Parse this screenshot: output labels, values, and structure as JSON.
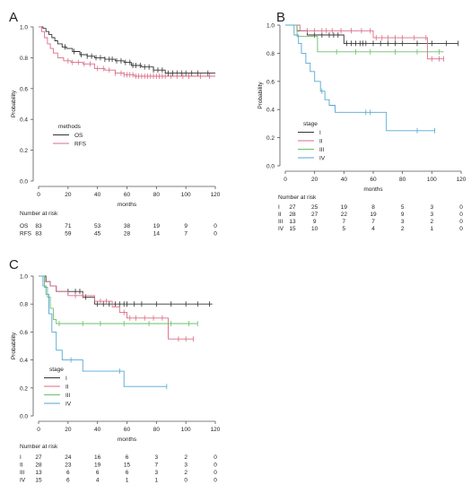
{
  "chart_data": [
    {
      "panel": "A",
      "type": "line",
      "xlabel": "months",
      "ylabel": "Probability",
      "xlim": [
        0,
        120
      ],
      "ylim": [
        0,
        1.0
      ],
      "xticks": [
        0,
        20,
        40,
        60,
        80,
        100,
        120
      ],
      "yticks": [
        0.0,
        0.2,
        0.4,
        0.6,
        0.8,
        1.0
      ],
      "legend": {
        "title": "methods",
        "placement": "center-left"
      },
      "series": [
        {
          "name": "OS",
          "color": "#333333",
          "steps": [
            [
              0,
              1.0
            ],
            [
              3,
              0.99
            ],
            [
              5,
              0.97
            ],
            [
              7,
              0.95
            ],
            [
              9,
              0.93
            ],
            [
              11,
              0.91
            ],
            [
              13,
              0.89
            ],
            [
              16,
              0.87
            ],
            [
              19,
              0.86
            ],
            [
              23,
              0.84
            ],
            [
              28,
              0.82
            ],
            [
              33,
              0.81
            ],
            [
              38,
              0.8
            ],
            [
              45,
              0.79
            ],
            [
              52,
              0.78
            ],
            [
              58,
              0.77
            ],
            [
              63,
              0.75
            ],
            [
              70,
              0.74
            ],
            [
              78,
              0.72
            ],
            [
              86,
              0.7
            ],
            [
              95,
              0.7
            ],
            [
              120,
              0.7
            ]
          ],
          "censor": [
            18,
            24,
            29,
            33,
            36,
            39,
            42,
            45,
            48,
            50,
            53,
            56,
            59,
            62,
            64,
            66,
            69,
            72,
            75,
            78,
            81,
            84,
            88,
            91,
            94,
            97,
            100,
            104,
            108,
            115
          ]
        },
        {
          "name": "RFS",
          "color": "#d96d87",
          "steps": [
            [
              0,
              1.0
            ],
            [
              2,
              0.97
            ],
            [
              4,
              0.93
            ],
            [
              6,
              0.89
            ],
            [
              8,
              0.86
            ],
            [
              10,
              0.83
            ],
            [
              13,
              0.8
            ],
            [
              17,
              0.78
            ],
            [
              22,
              0.77
            ],
            [
              30,
              0.76
            ],
            [
              38,
              0.73
            ],
            [
              45,
              0.72
            ],
            [
              52,
              0.7
            ],
            [
              58,
              0.69
            ],
            [
              65,
              0.68
            ],
            [
              120,
              0.68
            ]
          ],
          "censor": [
            20,
            23,
            27,
            31,
            35,
            40,
            44,
            48,
            52,
            56,
            58,
            60,
            62,
            64,
            66,
            68,
            70,
            72,
            74,
            76,
            78,
            80,
            82,
            84,
            86,
            90,
            94,
            98,
            102,
            110,
            116
          ]
        }
      ],
      "risk_table": {
        "title": "Number at risk",
        "times": [
          0,
          20,
          40,
          60,
          80,
          100,
          120
        ],
        "rows": [
          {
            "label": "OS",
            "values": [
              "83",
              "71",
              "53",
              "38",
              "19",
              "9",
              "0"
            ]
          },
          {
            "label": "RFS",
            "values": [
              "83",
              "59",
              "45",
              "28",
              "14",
              "7",
              "0"
            ]
          }
        ]
      }
    },
    {
      "panel": "B",
      "type": "line",
      "xlabel": "months",
      "ylabel": "Probability",
      "xlim": [
        0,
        120
      ],
      "ylim": [
        0,
        1.0
      ],
      "xticks": [
        0,
        20,
        40,
        60,
        80,
        100,
        120
      ],
      "yticks": [
        0.0,
        0.2,
        0.4,
        0.6,
        0.8,
        1.0
      ],
      "legend": {
        "title": "stage",
        "placement": "center-left"
      },
      "series": [
        {
          "name": "I",
          "color": "#333333",
          "steps": [
            [
              0,
              1.0
            ],
            [
              8,
              0.96
            ],
            [
              15,
              0.93
            ],
            [
              40,
              0.87
            ],
            [
              118,
              0.87
            ]
          ],
          "censor": [
            20,
            25,
            30,
            33,
            36,
            42,
            45,
            48,
            51,
            53,
            55,
            60,
            65,
            70,
            75,
            80,
            90,
            100,
            110,
            118
          ]
        },
        {
          "name": "II",
          "color": "#d96d87",
          "steps": [
            [
              0,
              1.0
            ],
            [
              10,
              0.96
            ],
            [
              60,
              0.91
            ],
            [
              97,
              0.76
            ],
            [
              108,
              0.76
            ]
          ],
          "censor": [
            15,
            20,
            25,
            28,
            32,
            38,
            45,
            52,
            58,
            62,
            66,
            70,
            75,
            80,
            88,
            96,
            100,
            105,
            108
          ]
        },
        {
          "name": "III",
          "color": "#6bbf6b",
          "steps": [
            [
              0,
              1.0
            ],
            [
              8,
              0.92
            ],
            [
              22,
              0.81
            ],
            [
              108,
              0.81
            ]
          ],
          "censor": [
            35,
            48,
            58,
            75,
            90,
            105
          ]
        },
        {
          "name": "IV",
          "color": "#56a6d6",
          "steps": [
            [
              0,
              1.0
            ],
            [
              6,
              0.93
            ],
            [
              9,
              0.87
            ],
            [
              11,
              0.8
            ],
            [
              14,
              0.73
            ],
            [
              17,
              0.67
            ],
            [
              20,
              0.6
            ],
            [
              24,
              0.53
            ],
            [
              27,
              0.47
            ],
            [
              30,
              0.43
            ],
            [
              34,
              0.38
            ],
            [
              69,
              0.25
            ],
            [
              102,
              0.25
            ]
          ],
          "censor": [
            25,
            55,
            58,
            90,
            102
          ]
        }
      ],
      "risk_table": {
        "title": "Number at risk",
        "times": [
          0,
          20,
          40,
          60,
          80,
          100,
          120
        ],
        "rows": [
          {
            "label": "I",
            "values": [
              "27",
              "25",
              "19",
              "8",
              "5",
              "3",
              "0"
            ]
          },
          {
            "label": "II",
            "values": [
              "28",
              "27",
              "22",
              "19",
              "9",
              "3",
              "0"
            ]
          },
          {
            "label": "III",
            "values": [
              "13",
              "9",
              "7",
              "7",
              "3",
              "2",
              "0"
            ]
          },
          {
            "label": "IV",
            "values": [
              "15",
              "10",
              "5",
              "4",
              "2",
              "1",
              "0"
            ]
          }
        ]
      }
    },
    {
      "panel": "C",
      "type": "line",
      "xlabel": "months",
      "ylabel": "Probability",
      "xlim": [
        0,
        120
      ],
      "ylim": [
        0,
        1.0
      ],
      "xticks": [
        0,
        20,
        40,
        60,
        80,
        100,
        120
      ],
      "yticks": [
        0.0,
        0.2,
        0.4,
        0.6,
        0.8,
        1.0
      ],
      "legend": {
        "title": "stage",
        "placement": "bottom-left"
      },
      "series": [
        {
          "name": "I",
          "color": "#333333",
          "steps": [
            [
              0,
              1.0
            ],
            [
              5,
              0.96
            ],
            [
              8,
              0.93
            ],
            [
              12,
              0.89
            ],
            [
              30,
              0.85
            ],
            [
              38,
              0.8
            ],
            [
              118,
              0.8
            ]
          ],
          "censor": [
            20,
            25,
            28,
            32,
            40,
            44,
            48,
            52,
            55,
            58,
            60,
            65,
            70,
            80,
            90,
            100,
            108,
            116
          ]
        },
        {
          "name": "II",
          "color": "#d96d87",
          "steps": [
            [
              0,
              1.0
            ],
            [
              4,
              0.96
            ],
            [
              8,
              0.93
            ],
            [
              12,
              0.89
            ],
            [
              20,
              0.86
            ],
            [
              38,
              0.82
            ],
            [
              50,
              0.78
            ],
            [
              55,
              0.74
            ],
            [
              60,
              0.7
            ],
            [
              88,
              0.55
            ],
            [
              105,
              0.55
            ]
          ],
          "censor": [
            25,
            30,
            42,
            46,
            58,
            62,
            66,
            72,
            78,
            84,
            95,
            100,
            105
          ]
        },
        {
          "name": "III",
          "color": "#6bbf6b",
          "steps": [
            [
              0,
              1.0
            ],
            [
              4,
              0.92
            ],
            [
              6,
              0.85
            ],
            [
              8,
              0.77
            ],
            [
              10,
              0.69
            ],
            [
              12,
              0.66
            ],
            [
              108,
              0.66
            ]
          ],
          "censor": [
            14,
            30,
            42,
            58,
            75,
            90,
            102,
            108
          ]
        },
        {
          "name": "IV",
          "color": "#56a6d6",
          "steps": [
            [
              0,
              1.0
            ],
            [
              3,
              0.93
            ],
            [
              5,
              0.87
            ],
            [
              7,
              0.73
            ],
            [
              9,
              0.6
            ],
            [
              12,
              0.47
            ],
            [
              16,
              0.4
            ],
            [
              30,
              0.32
            ],
            [
              58,
              0.21
            ],
            [
              87,
              0.21
            ]
          ],
          "censor": [
            22,
            55,
            87
          ]
        }
      ],
      "risk_table": {
        "title": "Number at risk",
        "times": [
          0,
          20,
          40,
          60,
          80,
          100,
          120
        ],
        "rows": [
          {
            "label": "I",
            "values": [
              "27",
              "24",
              "16",
              "6",
              "3",
              "2",
              "0"
            ]
          },
          {
            "label": "II",
            "values": [
              "28",
              "23",
              "19",
              "15",
              "7",
              "3",
              "0"
            ]
          },
          {
            "label": "III",
            "values": [
              "13",
              "6",
              "6",
              "6",
              "3",
              "2",
              "0"
            ]
          },
          {
            "label": "IV",
            "values": [
              "15",
              "6",
              "4",
              "1",
              "1",
              "0",
              "0"
            ]
          }
        ]
      }
    }
  ]
}
